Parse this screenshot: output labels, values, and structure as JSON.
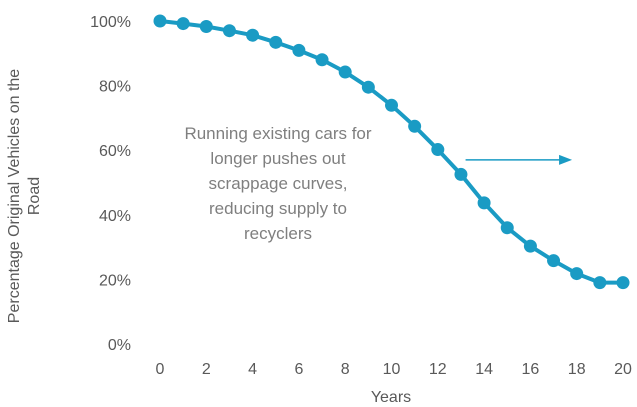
{
  "chart_data": {
    "type": "line",
    "title": "",
    "xlabel": "Years",
    "ylabel_lines": [
      "Percentage Original Vehicles on the",
      "Road"
    ],
    "x": [
      0,
      1,
      2,
      3,
      4,
      5,
      6,
      7,
      8,
      9,
      10,
      11,
      12,
      13,
      14,
      15,
      16,
      17,
      18,
      19,
      20
    ],
    "series": [
      {
        "values": [
          100,
          99.2,
          98.3,
          97,
          95.6,
          93.4,
          90.9,
          88,
          84.2,
          79.5,
          73.9,
          67.4,
          60.2,
          52.5,
          43.7,
          36,
          30.3,
          25.8,
          21.8,
          19,
          19
        ]
      }
    ],
    "xticks": [
      0,
      2,
      4,
      6,
      8,
      10,
      12,
      14,
      16,
      18,
      20
    ],
    "xtick_labels": [
      "0",
      "2",
      "4",
      "6",
      "8",
      "10",
      "12",
      "14",
      "16",
      "18",
      "20"
    ],
    "yticks": [
      0,
      20,
      40,
      60,
      80,
      100
    ],
    "ytick_labels": [
      "0%",
      "20%",
      "40%",
      "60%",
      "80%",
      "100%"
    ],
    "xlim": [
      0,
      20
    ],
    "ylim": [
      0,
      100
    ],
    "grid": false,
    "legend": "none",
    "line_color": "#1a9bc4",
    "annotation": {
      "lines": [
        "Running existing cars for",
        "longer pushes out",
        "scrappage curves,",
        "reducing supply to",
        "recyclers"
      ],
      "arrow": {
        "x_start": 13.2,
        "x_end": 17.8,
        "y": 57,
        "direction": "right"
      }
    }
  }
}
